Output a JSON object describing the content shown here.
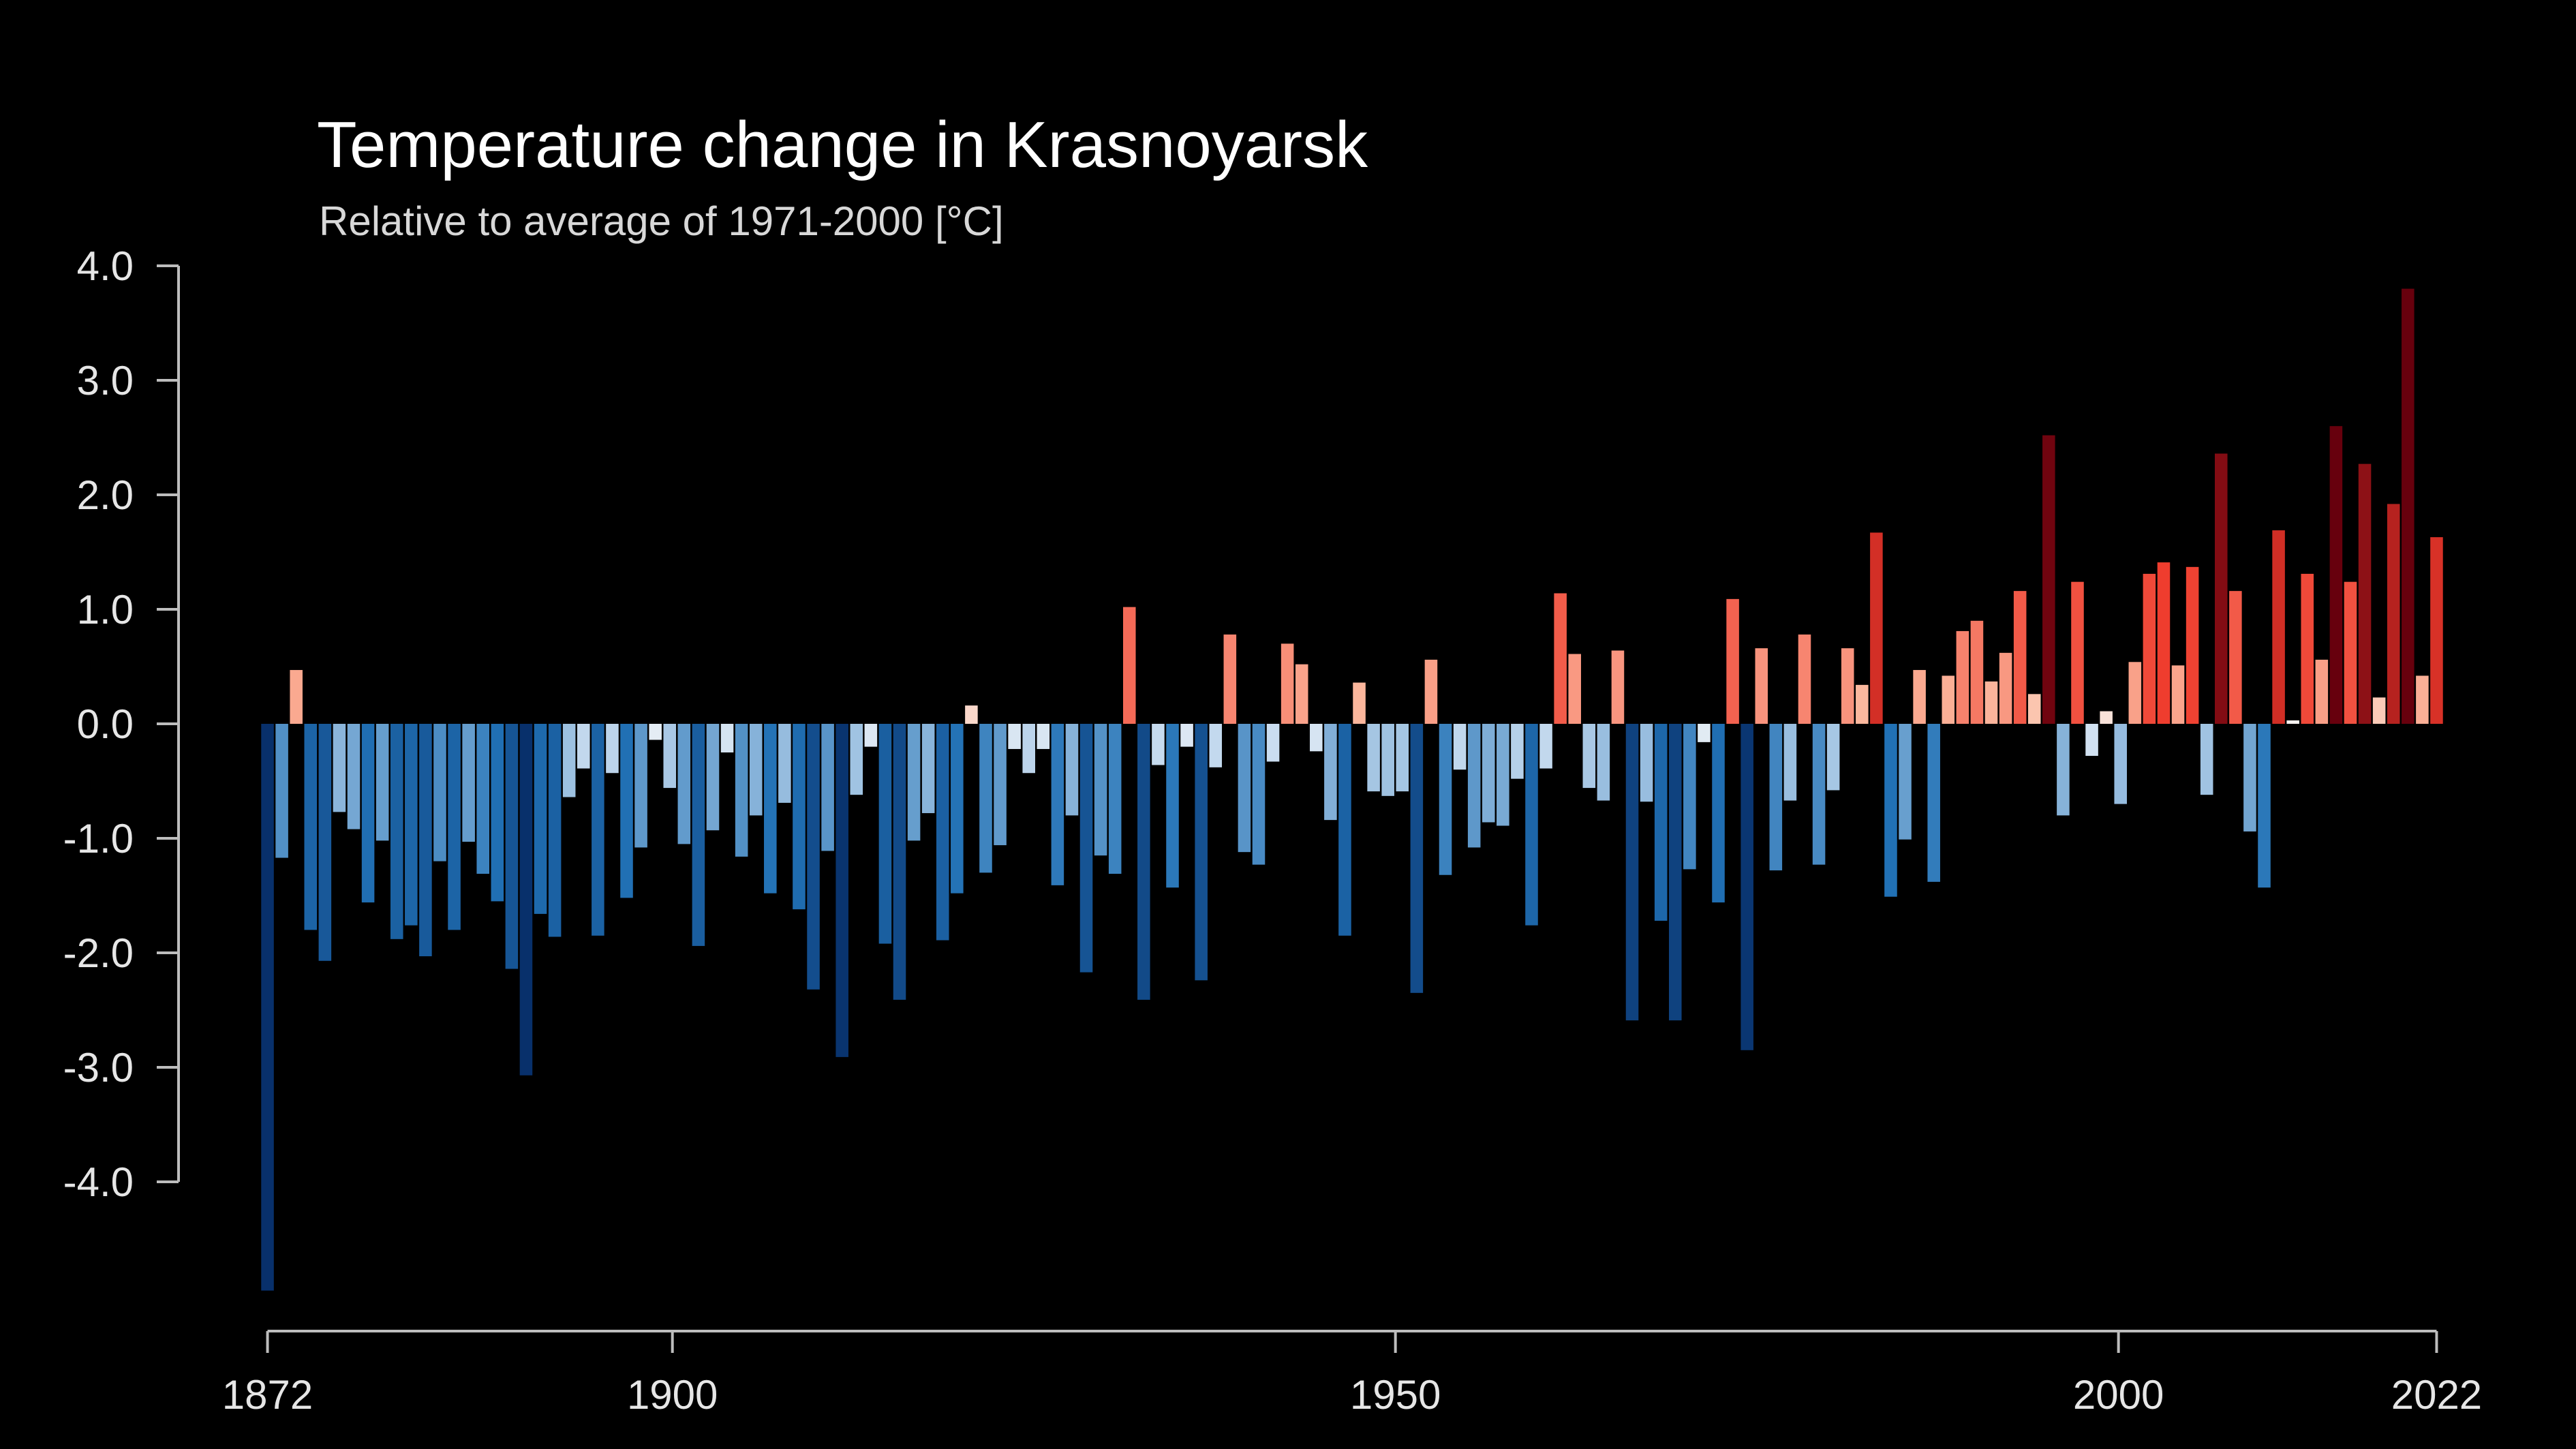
{
  "chart_data": {
    "type": "bar",
    "title": "Temperature change in Krasnoyarsk",
    "subtitle": "Relative to average of 1971-2000  [°C]",
    "xlabel": "",
    "ylabel": "",
    "x_start": 1872,
    "x_end": 2022,
    "ylim": [
      -5.0,
      4.3
    ],
    "y_ticks": [
      {
        "value": 4.0,
        "label": "4.0"
      },
      {
        "value": 3.0,
        "label": "3.0"
      },
      {
        "value": 2.0,
        "label": "2.0"
      },
      {
        "value": 1.0,
        "label": "1.0"
      },
      {
        "value": 0.0,
        "label": "0.0"
      },
      {
        "value": -1.0,
        "label": "-1.0"
      },
      {
        "value": -2.0,
        "label": "-2.0"
      },
      {
        "value": -3.0,
        "label": "-3.0"
      },
      {
        "value": -4.0,
        "label": "-4.0"
      }
    ],
    "x_ticks": [
      {
        "value": 1872,
        "label": "1872"
      },
      {
        "value": 1900,
        "label": "1900"
      },
      {
        "value": 1950,
        "label": "1950"
      },
      {
        "value": 2000,
        "label": "2000"
      },
      {
        "value": 2022,
        "label": "2022"
      }
    ],
    "grid": false,
    "legend": "none",
    "color_scale": {
      "cold_max": "#08306b",
      "cold_mid": "#2171b5",
      "cold_light": "#c6dbef",
      "neutral": "#f7f7f7",
      "warm_light": "#fcbba1",
      "warm_mid": "#ef3b2c",
      "warm_max": "#67000d"
    },
    "series": [
      {
        "values": [
          -4.95,
          -1.17,
          0.47,
          -1.8,
          -2.07,
          -0.77,
          -0.92,
          -1.56,
          -1.02,
          -1.88,
          -1.76,
          -2.03,
          -1.2,
          -1.8,
          -1.03,
          -1.31,
          -1.55,
          -2.14,
          -3.07,
          -1.66,
          -1.86,
          -0.64,
          -0.39,
          -1.85,
          -0.43,
          -1.52,
          -1.08,
          -0.14,
          -0.56,
          -1.05,
          -1.94,
          -0.93,
          -0.25,
          -1.16,
          -0.8,
          -1.48,
          -0.69,
          -1.62,
          -2.32,
          -1.11,
          -2.91,
          -0.62,
          -0.2,
          -1.92,
          -2.41,
          -1.02,
          -0.78,
          -1.89,
          -1.48,
          0.16,
          -1.3,
          -1.06,
          -0.22,
          -0.43,
          -0.22,
          -1.41,
          -0.8,
          -2.17,
          -1.15,
          -1.31,
          1.02,
          -2.41,
          -0.36,
          -1.43,
          -0.2,
          -2.24,
          -0.38,
          0.78,
          -1.12,
          -1.23,
          -0.33,
          0.7,
          0.52,
          -0.24,
          -0.84,
          -1.85,
          0.36,
          -0.59,
          -0.63,
          -0.59,
          -2.35,
          0.56,
          -1.32,
          -0.4,
          -1.08,
          -0.86,
          -0.89,
          -0.48,
          -1.76,
          -0.39,
          1.14,
          0.61,
          -0.56,
          -0.67,
          0.64,
          -2.59,
          -0.68,
          -1.72,
          -2.59,
          -1.27,
          -0.16,
          -1.56,
          1.09,
          -2.85,
          0.66,
          -1.28,
          -0.67,
          0.78,
          -1.23,
          -0.58,
          0.66,
          0.34,
          1.67,
          -1.51,
          -1.01,
          0.47,
          -1.38,
          0.42,
          0.81,
          0.9,
          0.37,
          0.62,
          1.16,
          0.26,
          2.52,
          -0.8,
          1.24,
          -0.28,
          0.11,
          -0.7,
          0.54,
          1.31,
          1.41,
          0.51,
          1.37,
          -0.62,
          2.36,
          1.16,
          -0.94,
          -1.43,
          1.69,
          0.03,
          1.31,
          0.56,
          2.6,
          1.24,
          2.27,
          0.23,
          1.92,
          3.8,
          0.42,
          1.63
        ]
      }
    ]
  }
}
